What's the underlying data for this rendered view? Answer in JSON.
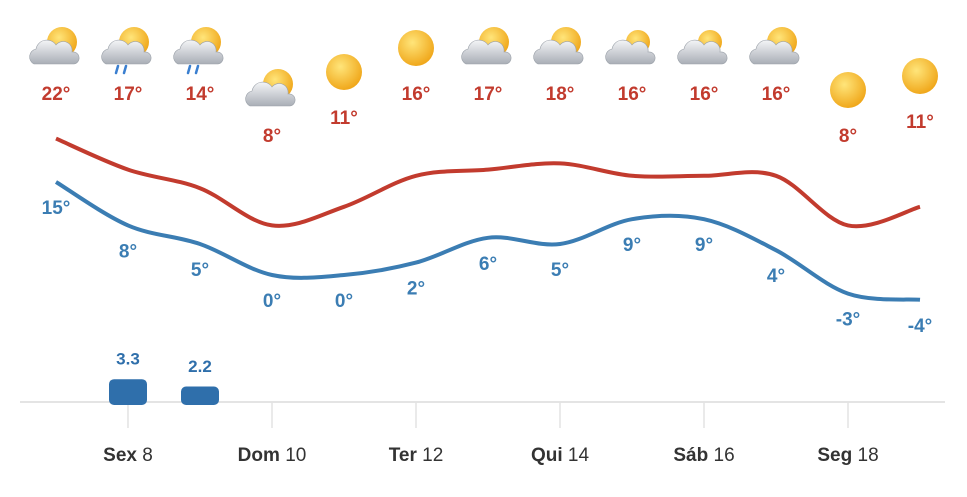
{
  "chart_data": {
    "type": "line",
    "categories": [
      null,
      {
        "day": "Sex",
        "date": "8"
      },
      null,
      {
        "day": "Dom",
        "date": "10"
      },
      null,
      {
        "day": "Ter",
        "date": "12"
      },
      null,
      {
        "day": "Qui",
        "date": "14"
      },
      null,
      {
        "day": "Sáb",
        "date": "16"
      },
      null,
      {
        "day": "Seg",
        "date": "18"
      },
      null
    ],
    "series": [
      {
        "color": "#c23b2e",
        "values": [
          22,
          17,
          14,
          8,
          11,
          16,
          17,
          18,
          16,
          16,
          16,
          8,
          11
        ],
        "value_labels": [
          "22°",
          "17°",
          "14°",
          "8°",
          "11°",
          "16°",
          "17°",
          "18°",
          "16°",
          "16°",
          "16°",
          "8°",
          "11°"
        ]
      },
      {
        "color": "#3b7db3",
        "values": [
          15,
          8,
          5,
          0,
          0,
          2,
          6,
          5,
          9,
          9,
          4,
          -3,
          -4
        ],
        "value_labels": [
          "15°",
          "8°",
          "5°",
          "0°",
          "0°",
          "2°",
          "6°",
          "5°",
          "9°",
          "9°",
          "4°",
          "-3°",
          "-4°"
        ]
      },
      {
        "type": "bar",
        "axis": "y2",
        "color": "#2f6fab",
        "values": [
          null,
          3.3,
          2.2,
          null,
          null,
          null,
          null,
          null,
          null,
          null,
          null,
          null,
          null
        ]
      }
    ],
    "ylim": [
      -10,
      30
    ],
    "y2lim": [
      0,
      10
    ]
  }
}
